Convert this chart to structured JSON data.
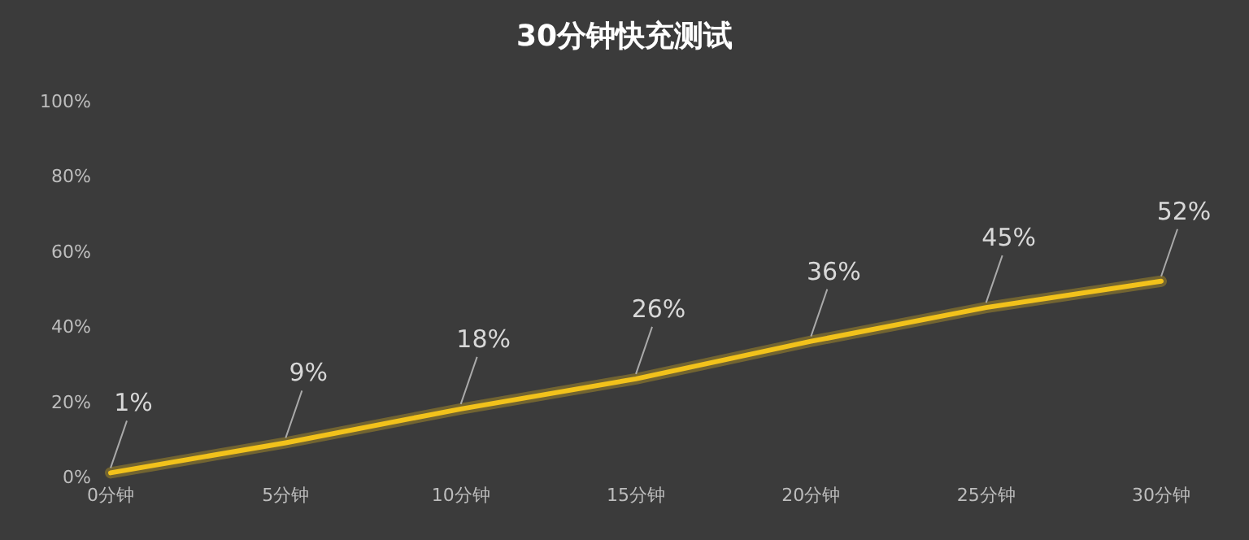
{
  "chart_data": {
    "type": "line",
    "title": "30分钟快充测试",
    "categories": [
      "0分钟",
      "5分钟",
      "10分钟",
      "15分钟",
      "20分钟",
      "25分钟",
      "30分钟"
    ],
    "series": [
      {
        "color": "#f2c21b",
        "values": [
          1,
          9,
          18,
          26,
          36,
          45,
          52
        ],
        "value_labels": [
          "1%",
          "9%",
          "18%",
          "26%",
          "36%",
          "45%",
          "52%"
        ]
      }
    ],
    "ylim": [
      0,
      100
    ],
    "yticks": [
      {
        "value": 0,
        "label": "0%"
      },
      {
        "value": 20,
        "label": "20%"
      },
      {
        "value": 40,
        "label": "40%"
      },
      {
        "value": 60,
        "label": "60%"
      },
      {
        "value": 80,
        "label": "80%"
      },
      {
        "value": 100,
        "label": "100%"
      }
    ],
    "grid": false,
    "marker": "none",
    "line_style": "solid"
  }
}
